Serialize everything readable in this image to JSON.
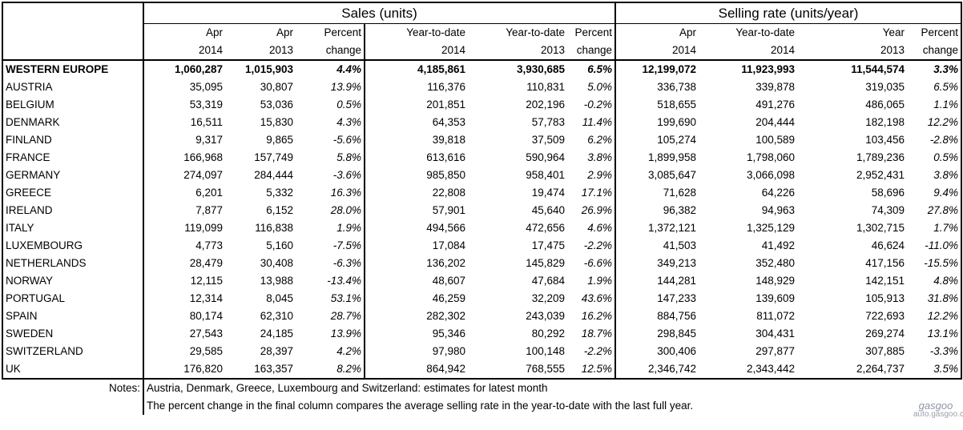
{
  "chart_data": {
    "type": "table",
    "group_headers": [
      "Sales (units)",
      "Selling rate (units/year)"
    ],
    "columns": [
      {
        "top": "Apr",
        "bottom": "2014"
      },
      {
        "top": "Apr",
        "bottom": "2013"
      },
      {
        "top": "Percent",
        "bottom": "change"
      },
      {
        "top": "Year-to-date",
        "bottom": "2014"
      },
      {
        "top": "Year-to-date",
        "bottom": "2013"
      },
      {
        "top": "Percent",
        "bottom": "change"
      },
      {
        "top": "Apr",
        "bottom": "2014"
      },
      {
        "top": "Year-to-date",
        "bottom": "2014"
      },
      {
        "top": "Year",
        "bottom": "2013"
      },
      {
        "top": "Percent",
        "bottom": "change"
      }
    ],
    "rows": [
      {
        "name": "WESTERN EUROPE",
        "cells": [
          "1,060,287",
          "1,015,903",
          "4.4%",
          "4,185,861",
          "3,930,685",
          "6.5%",
          "12,199,072",
          "11,923,993",
          "11,544,574",
          "3.3%"
        ]
      },
      {
        "name": "AUSTRIA",
        "cells": [
          "35,095",
          "30,807",
          "13.9%",
          "116,376",
          "110,831",
          "5.0%",
          "336,738",
          "339,878",
          "319,035",
          "6.5%"
        ]
      },
      {
        "name": "BELGIUM",
        "cells": [
          "53,319",
          "53,036",
          "0.5%",
          "201,851",
          "202,196",
          "-0.2%",
          "518,655",
          "491,276",
          "486,065",
          "1.1%"
        ]
      },
      {
        "name": "DENMARK",
        "cells": [
          "16,511",
          "15,830",
          "4.3%",
          "64,353",
          "57,783",
          "11.4%",
          "199,690",
          "204,444",
          "182,198",
          "12.2%"
        ]
      },
      {
        "name": "FINLAND",
        "cells": [
          "9,317",
          "9,865",
          "-5.6%",
          "39,818",
          "37,509",
          "6.2%",
          "105,274",
          "100,589",
          "103,456",
          "-2.8%"
        ]
      },
      {
        "name": "FRANCE",
        "cells": [
          "166,968",
          "157,749",
          "5.8%",
          "613,616",
          "590,964",
          "3.8%",
          "1,899,958",
          "1,798,060",
          "1,789,236",
          "0.5%"
        ]
      },
      {
        "name": "GERMANY",
        "cells": [
          "274,097",
          "284,444",
          "-3.6%",
          "985,850",
          "958,401",
          "2.9%",
          "3,085,647",
          "3,066,098",
          "2,952,431",
          "3.8%"
        ]
      },
      {
        "name": "GREECE",
        "cells": [
          "6,201",
          "5,332",
          "16.3%",
          "22,808",
          "19,474",
          "17.1%",
          "71,628",
          "64,226",
          "58,696",
          "9.4%"
        ]
      },
      {
        "name": "IRELAND",
        "cells": [
          "7,877",
          "6,152",
          "28.0%",
          "57,901",
          "45,640",
          "26.9%",
          "96,382",
          "94,963",
          "74,309",
          "27.8%"
        ]
      },
      {
        "name": "ITALY",
        "cells": [
          "119,099",
          "116,838",
          "1.9%",
          "494,566",
          "472,656",
          "4.6%",
          "1,372,121",
          "1,325,129",
          "1,302,715",
          "1.7%"
        ]
      },
      {
        "name": "LUXEMBOURG",
        "cells": [
          "4,773",
          "5,160",
          "-7.5%",
          "17,084",
          "17,475",
          "-2.2%",
          "41,503",
          "41,492",
          "46,624",
          "-11.0%"
        ]
      },
      {
        "name": "NETHERLANDS",
        "cells": [
          "28,479",
          "30,408",
          "-6.3%",
          "136,202",
          "145,829",
          "-6.6%",
          "349,213",
          "352,480",
          "417,156",
          "-15.5%"
        ]
      },
      {
        "name": "NORWAY",
        "cells": [
          "12,115",
          "13,988",
          "-13.4%",
          "48,607",
          "47,684",
          "1.9%",
          "144,281",
          "148,929",
          "142,151",
          "4.8%"
        ]
      },
      {
        "name": "PORTUGAL",
        "cells": [
          "12,314",
          "8,045",
          "53.1%",
          "46,259",
          "32,209",
          "43.6%",
          "147,233",
          "139,609",
          "105,913",
          "31.8%"
        ]
      },
      {
        "name": "SPAIN",
        "cells": [
          "80,174",
          "62,310",
          "28.7%",
          "282,302",
          "243,039",
          "16.2%",
          "884,756",
          "811,072",
          "722,693",
          "12.2%"
        ]
      },
      {
        "name": "SWEDEN",
        "cells": [
          "27,543",
          "24,185",
          "13.9%",
          "95,346",
          "80,292",
          "18.7%",
          "298,845",
          "304,431",
          "269,274",
          "13.1%"
        ]
      },
      {
        "name": "SWITZERLAND",
        "cells": [
          "29,585",
          "28,397",
          "4.2%",
          "97,980",
          "100,148",
          "-2.2%",
          "300,406",
          "297,877",
          "307,885",
          "-3.3%"
        ]
      },
      {
        "name": "UK",
        "cells": [
          "176,820",
          "163,357",
          "8.2%",
          "864,942",
          "768,555",
          "12.5%",
          "2,346,742",
          "2,343,442",
          "2,264,737",
          "3.5%"
        ]
      }
    ],
    "notes_label": "Notes:",
    "notes": [
      "Austria, Denmark, Greece, Luxembourg and Switzerland: estimates for latest month",
      "The percent change in the final column compares the average selling rate in the year-to-date with the last full year."
    ]
  },
  "watermark": {
    "logo": "gasgoo",
    "site": "auto.gasgoo.com"
  }
}
